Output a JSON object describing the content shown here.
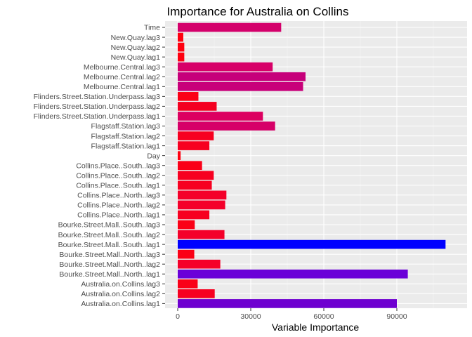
{
  "chart_data": {
    "type": "bar",
    "orientation": "horizontal",
    "title": "Importance for Australia on Collins",
    "xlabel": "Variable Importance",
    "ylabel": "",
    "xlim": [
      0,
      110000
    ],
    "x_ticks": [
      0,
      30000,
      60000,
      90000
    ],
    "x_tick_labels": [
      "0",
      "30000",
      "60000",
      "90000"
    ],
    "grid": true,
    "background": "#ebebeb",
    "categories": [
      "Time",
      "New.Quay.lag3",
      "New.Quay.lag2",
      "New.Quay.lag1",
      "Melbourne.Central.lag3",
      "Melbourne.Central.lag2",
      "Melbourne.Central.lag1",
      "Flinders.Street.Station.Underpass.lag3",
      "Flinders.Street.Station.Underpass.lag2",
      "Flinders.Street.Station.Underpass.lag1",
      "Flagstaff.Station.lag3",
      "Flagstaff.Station.lag2",
      "Flagstaff.Station.lag1",
      "Day",
      "Collins.Place..South..lag3",
      "Collins.Place..South..lag2",
      "Collins.Place..South..lag1",
      "Collins.Place..North..lag3",
      "Collins.Place..North..lag2",
      "Collins.Place..North..lag1",
      "Bourke.Street.Mall..South..lag3",
      "Bourke.Street.Mall..South..lag2",
      "Bourke.Street.Mall..South..lag1",
      "Bourke.Street.Mall..North..lag3",
      "Bourke.Street.Mall..North..lag2",
      "Bourke.Street.Mall..North..lag1",
      "Australia.on.Collins.lag3",
      "Australia.on.Collins.lag2",
      "Australia.on.Collins.lag1"
    ],
    "values": [
      42500,
      2300,
      2700,
      2700,
      39000,
      52500,
      51500,
      8500,
      16000,
      35000,
      40000,
      14800,
      13000,
      1200,
      10000,
      14800,
      14000,
      20000,
      19500,
      13000,
      7000,
      19200,
      110000,
      6800,
      17500,
      94500,
      8200,
      15200,
      90000
    ],
    "colors": [
      "#d4006b",
      "#ff0010",
      "#ff0010",
      "#ff0010",
      "#d70068",
      "#c6007a",
      "#c8007a",
      "#fb0016",
      "#f40020",
      "#dc0060",
      "#d60068",
      "#f70020",
      "#f70020",
      "#ff0010",
      "#fa0018",
      "#f70020",
      "#f70020",
      "#f4002a",
      "#f4002a",
      "#f70020",
      "#fb0016",
      "#f4002a",
      "#0000ff",
      "#fb0016",
      "#f5002a",
      "#6a00d8",
      "#fa0018",
      "#f70020",
      "#6e00d0"
    ]
  }
}
